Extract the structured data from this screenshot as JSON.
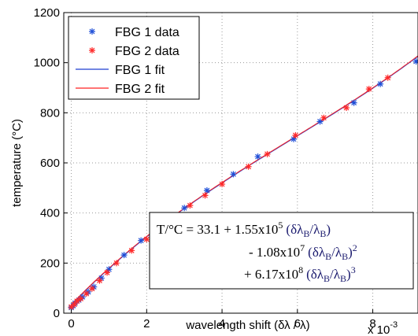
{
  "chart_data": {
    "type": "scatter",
    "xlabel": "wavelength shift (δλ / λ)",
    "x_multiplier_label": "x 10",
    "x_multiplier_exp": "-3",
    "ylabel": "temperature (°C)",
    "xlim": [
      -0.2,
      9.2
    ],
    "ylim": [
      0,
      1200
    ],
    "xticks": [
      0,
      2,
      4,
      6,
      8
    ],
    "yticks": [
      0,
      200,
      400,
      600,
      800,
      1000,
      1200
    ],
    "grid": true,
    "legend_position": "top-left",
    "series": [
      {
        "name": "FBG 1 data",
        "kind": "points",
        "marker": "*",
        "color": "#2050d8",
        "x": [
          0,
          0.05,
          0.1,
          0.2,
          0.3,
          0.45,
          0.6,
          0.8,
          1.0,
          1.4,
          1.85,
          2.4,
          3.0,
          3.6,
          4.3,
          4.95,
          5.9,
          6.6,
          7.5,
          8.2,
          9.15
        ],
        "y": [
          22,
          30,
          40,
          52,
          65,
          85,
          105,
          140,
          175,
          232,
          290,
          355,
          420,
          490,
          555,
          625,
          695,
          765,
          840,
          915,
          1005
        ]
      },
      {
        "name": "FBG 2 data",
        "kind": "points",
        "marker": "*",
        "color": "#ff2a2a",
        "x": [
          0,
          0.08,
          0.15,
          0.25,
          0.4,
          0.55,
          0.75,
          0.95,
          1.2,
          1.6,
          2.0,
          2.45,
          3.15,
          3.55,
          4.0,
          4.7,
          5.2,
          5.95,
          6.7,
          7.3,
          7.9,
          8.4
        ],
        "y": [
          25,
          35,
          48,
          58,
          78,
          98,
          130,
          162,
          200,
          250,
          295,
          350,
          430,
          470,
          515,
          585,
          635,
          710,
          780,
          820,
          895,
          940
        ]
      },
      {
        "name": "FBG 1 fit",
        "kind": "line",
        "color": "#1f3fd0"
      },
      {
        "name": "FBG 2 fit",
        "kind": "line",
        "color": "#ff2020"
      }
    ],
    "fit_equation": {
      "coeffs": [
        33.1,
        155000,
        -10800000,
        617000000
      ],
      "x_scale": 0.001,
      "line1_a": "T/°C = 33.1 + 1.55x10",
      "line1_a_sup": "5",
      "line2_a": "- 1.08x10",
      "line2_a_sup": "7",
      "line3_a": "+ 6.17x10",
      "line3_a_sup": "8",
      "ratio_open": "(δλ",
      "ratio_sub": "B",
      "ratio_slash": "/λ",
      "ratio_close": ")",
      "pow2": "2",
      "pow3": "3"
    }
  }
}
